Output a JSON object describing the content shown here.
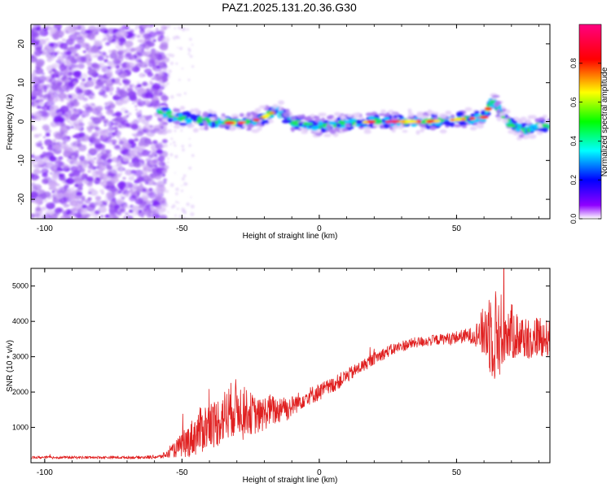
{
  "title": "PAZ1.2025.131.20.36.G30",
  "chart_data": [
    {
      "type": "heatmap",
      "xlabel": "Height of straight line (km)",
      "ylabel": "Frequency (Hz)",
      "xlim": [
        -105,
        84
      ],
      "ylim": [
        -25,
        25
      ],
      "x_ticks": [
        -100,
        -50,
        0,
        50
      ],
      "y_ticks": [
        -20,
        -10,
        0,
        10,
        20
      ],
      "colorbar": {
        "label": "Normalized spectral amplitude",
        "range": [
          0,
          1
        ],
        "ticks": [
          "0.0",
          "0.2",
          "0.4",
          "0.6",
          "0.8"
        ],
        "colors": [
          "#ffffff",
          "#8f00ff",
          "#0000ff",
          "#00ffff",
          "#00ff00",
          "#ffff00",
          "#ff0000",
          "#ff0080"
        ]
      },
      "noise_region_x": [
        -105,
        -56
      ],
      "signal_track": {
        "x": [
          -58,
          -52,
          -45,
          -38,
          -30,
          -22,
          -15,
          -10,
          -5,
          0,
          10,
          20,
          30,
          40,
          50,
          56,
          60,
          62,
          64,
          66,
          70,
          75,
          80,
          84
        ],
        "freq": [
          3,
          1,
          0.5,
          0,
          -0.5,
          0.5,
          3,
          0,
          -0.5,
          -1,
          -0.5,
          0,
          0,
          0,
          0.5,
          0.8,
          1,
          4,
          6,
          2,
          -1,
          -2,
          -1,
          -1
        ],
        "peak_amplitude_x": [
          -25,
          25,
          35,
          55
        ]
      }
    },
    {
      "type": "line",
      "xlabel": "Height of straight line (km)",
      "ylabel": "SNR (10 * v/v)",
      "xlim": [
        -105,
        84
      ],
      "ylim": [
        0,
        5500
      ],
      "x_ticks": [
        -100,
        -50,
        0,
        50
      ],
      "y_ticks": [
        1000,
        2000,
        3000,
        4000,
        5000
      ],
      "series": [
        {
          "color": "#e02020",
          "x": [
            -105,
            -95,
            -85,
            -75,
            -65,
            -58,
            -55,
            -52,
            -48,
            -45,
            -42,
            -38,
            -35,
            -32,
            -30,
            -28,
            -25,
            -22,
            -20,
            -18,
            -15,
            -13,
            -12,
            -10,
            -5,
            0,
            5,
            10,
            15,
            20,
            25,
            30,
            35,
            40,
            45,
            50,
            55,
            58,
            60,
            62,
            64,
            66,
            68,
            70,
            72,
            75,
            78,
            80,
            84
          ],
          "values": [
            150,
            150,
            150,
            150,
            150,
            170,
            250,
            400,
            600,
            800,
            1000,
            1100,
            1300,
            1500,
            1600,
            1500,
            1400,
            1300,
            1400,
            1500,
            1450,
            1700,
            1500,
            1600,
            1850,
            2000,
            2200,
            2450,
            2700,
            2950,
            3150,
            3300,
            3400,
            3450,
            3500,
            3550,
            3600,
            3650,
            3700,
            3800,
            3600,
            3650,
            3750,
            3700,
            3600,
            3550,
            3500,
            3600,
            3500
          ],
          "noise_amplitude": [
            40,
            40,
            40,
            40,
            40,
            60,
            120,
            250,
            450,
            600,
            700,
            700,
            750,
            800,
            800,
            700,
            600,
            500,
            500,
            450,
            400,
            400,
            350,
            300,
            250,
            250,
            220,
            200,
            180,
            170,
            170,
            160,
            150,
            150,
            150,
            180,
            220,
            400,
            800,
            1300,
            1400,
            1200,
            900,
            800,
            700,
            650,
            600,
            600,
            500
          ]
        }
      ]
    }
  ]
}
